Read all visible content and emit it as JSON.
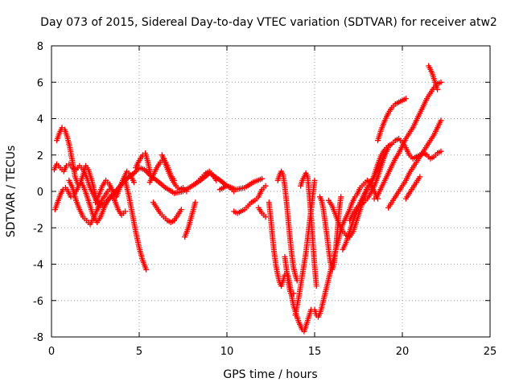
{
  "chart_data": {
    "type": "scatter",
    "title": "Day 073 of 2015, Sidereal Day-to-day VTEC variation (SDTVAR) for receiver atw2",
    "xlabel": "GPS time / hours",
    "ylabel": "SDTVAR / TECUs",
    "xlim": [
      0,
      25
    ],
    "ylim": [
      -8,
      8
    ],
    "xticks": [
      "0",
      "5",
      "10",
      "15",
      "20",
      "25"
    ],
    "yticks": [
      "-8",
      "-6",
      "-4",
      "-2",
      "0",
      "2",
      "4",
      "6",
      "8"
    ],
    "grid": true,
    "marker": "plus",
    "color": "#ff0000",
    "series": [
      {
        "x": [
          0.15,
          0.3,
          0.5,
          0.7,
          0.85,
          1.0,
          1.2,
          1.4,
          1.6,
          1.8,
          2.0,
          2.2,
          2.5,
          2.8,
          3.1,
          3.5,
          3.9,
          4.3,
          4.7,
          5.0,
          5.3,
          5.6,
          6.0,
          6.5,
          7.0,
          7.5,
          8.0,
          8.5,
          9.0,
          9.5,
          10.0,
          10.5,
          11.0,
          11.5,
          12.0
        ],
        "y": [
          1.2,
          1.5,
          1.3,
          1.1,
          1.4,
          1.5,
          1.3,
          1.2,
          1.4,
          1.2,
          0.8,
          0.2,
          -0.4,
          -0.8,
          -0.6,
          -0.2,
          0.3,
          0.7,
          1.0,
          1.3,
          1.2,
          0.9,
          0.6,
          0.2,
          -0.1,
          0.0,
          0.3,
          0.6,
          1.0,
          0.7,
          0.3,
          0.1,
          0.2,
          0.5,
          0.7
        ]
      },
      {
        "x": [
          0.2,
          0.35,
          0.5,
          0.65,
          0.8,
          0.95,
          1.1,
          1.25,
          1.4,
          1.55,
          1.7,
          1.85,
          2.0,
          2.2,
          2.4,
          2.6,
          2.8,
          3.0,
          3.2,
          3.4,
          3.6,
          3.8,
          4.0,
          4.2
        ],
        "y": [
          -1.0,
          -0.6,
          -0.2,
          0.1,
          0.2,
          0.0,
          -0.3,
          -0.2,
          0.0,
          0.3,
          0.5,
          0.2,
          -0.2,
          -0.8,
          -1.4,
          -1.7,
          -1.4,
          -0.9,
          -0.5,
          -0.2,
          -0.5,
          -1.0,
          -1.3,
          -1.1
        ]
      },
      {
        "x": [
          0.3,
          0.45,
          0.6,
          0.75,
          0.9,
          1.05,
          1.2,
          1.35,
          1.5,
          1.65,
          1.8,
          1.95,
          2.1,
          2.3,
          2.5,
          2.7
        ],
        "y": [
          2.8,
          3.2,
          3.5,
          3.4,
          3.0,
          2.4,
          1.6,
          0.8,
          0.4,
          0.5,
          0.9,
          1.4,
          1.2,
          0.6,
          -0.2,
          -0.9
        ]
      },
      {
        "x": [
          1.0,
          1.2,
          1.4,
          1.6,
          1.8,
          2.0,
          2.2,
          2.4,
          2.6,
          2.8,
          3.0,
          3.2,
          3.4
        ],
        "y": [
          0.6,
          0.2,
          -0.5,
          -1.0,
          -1.4,
          -1.6,
          -1.8,
          -1.5,
          -1.0,
          -0.6,
          -0.3,
          0.0,
          0.2
        ]
      },
      {
        "x": [
          2.5,
          2.7,
          2.9,
          3.1,
          3.3,
          3.5,
          3.7,
          3.9,
          4.1,
          4.3,
          4.5,
          4.7
        ],
        "y": [
          -0.6,
          -0.2,
          0.3,
          0.6,
          0.4,
          0.0,
          -0.3,
          0.2,
          0.7,
          1.1,
          0.9,
          0.5
        ]
      },
      {
        "x": [
          4.2,
          4.4,
          4.6,
          4.8,
          5.0,
          5.2,
          5.4
        ],
        "y": [
          0.6,
          -0.2,
          -1.2,
          -2.2,
          -3.1,
          -3.8,
          -4.3
        ]
      },
      {
        "x": [
          4.8,
          5.0,
          5.2,
          5.35,
          5.5,
          5.65
        ],
        "y": [
          1.3,
          1.7,
          2.0,
          2.1,
          1.6,
          0.9
        ]
      },
      {
        "x": [
          5.6,
          5.8,
          6.0,
          6.2,
          6.4,
          6.6,
          6.8,
          7.0
        ],
        "y": [
          0.5,
          0.9,
          1.3,
          1.6,
          1.8,
          1.4,
          0.9,
          0.6
        ]
      },
      {
        "x": [
          5.8,
          6.0,
          6.2,
          6.4,
          6.6,
          6.8,
          7.0,
          7.2,
          7.4
        ],
        "y": [
          -0.6,
          -0.9,
          -1.2,
          -1.4,
          -1.6,
          -1.7,
          -1.6,
          -1.3,
          -1.0
        ]
      },
      {
        "x": [
          6.3,
          6.5,
          6.7,
          6.9,
          7.1,
          7.3,
          7.5,
          7.7
        ],
        "y": [
          2.0,
          1.5,
          1.0,
          0.6,
          0.3,
          0.1,
          0.2,
          0.0
        ]
      },
      {
        "x": [
          7.6,
          7.8,
          8.0,
          8.2
        ],
        "y": [
          -2.5,
          -2.0,
          -1.3,
          -0.6
        ]
      },
      {
        "x": [
          8.2,
          8.4,
          8.6,
          8.8,
          9.0,
          9.2,
          9.4
        ],
        "y": [
          0.4,
          0.6,
          0.8,
          1.0,
          1.1,
          0.9,
          0.6
        ]
      },
      {
        "x": [
          9.6,
          9.8,
          10.0,
          10.2,
          10.4
        ],
        "y": [
          0.1,
          0.2,
          0.3,
          0.2,
          0.0
        ]
      },
      {
        "x": [
          10.4,
          10.6,
          10.8,
          11.0,
          11.2,
          11.4,
          11.6,
          11.8,
          12.0,
          12.2
        ],
        "y": [
          -1.1,
          -1.2,
          -1.1,
          -1.0,
          -0.8,
          -0.6,
          -0.5,
          -0.3,
          0.1,
          0.3
        ]
      },
      {
        "x": [
          11.8,
          12.0,
          12.2
        ],
        "y": [
          -0.9,
          -1.2,
          -1.4
        ]
      },
      {
        "x": [
          12.4,
          12.5,
          12.6,
          12.7,
          12.8,
          12.9,
          13.0,
          13.1,
          13.2,
          13.3,
          13.4,
          13.5,
          13.6,
          13.7,
          13.8,
          13.9,
          14.0,
          14.1,
          14.2,
          14.3,
          14.4,
          14.5,
          14.6,
          14.7,
          14.8
        ],
        "y": [
          -0.6,
          -1.5,
          -2.5,
          -3.4,
          -4.1,
          -4.6,
          -5.0,
          -5.2,
          -4.9,
          -4.6,
          -4.5,
          -4.7,
          -5.2,
          -5.8,
          -6.3,
          -6.6,
          -6.9,
          -7.2,
          -7.4,
          -7.6,
          -7.7,
          -7.4,
          -7.1,
          -6.8,
          -6.5
        ]
      },
      {
        "x": [
          12.9,
          13.0,
          13.1,
          13.2,
          13.3,
          13.4,
          13.5,
          13.6,
          13.7,
          13.8,
          13.9,
          14.0
        ],
        "y": [
          0.6,
          0.9,
          1.1,
          0.9,
          0.3,
          -0.6,
          -1.6,
          -2.6,
          -3.5,
          -4.2,
          -4.6,
          -4.9
        ]
      },
      {
        "x": [
          13.3,
          13.4,
          13.5,
          13.6,
          13.7,
          13.8
        ],
        "y": [
          -3.6,
          -4.3,
          -5.0,
          -5.5,
          -5.7,
          -5.6
        ]
      },
      {
        "x": [
          13.9,
          14.0,
          14.1,
          14.2,
          14.3,
          14.4,
          14.5,
          14.6,
          14.7,
          14.8,
          14.9,
          15.0
        ],
        "y": [
          -6.8,
          -6.3,
          -5.8,
          -5.2,
          -4.6,
          -4.0,
          -3.4,
          -2.6,
          -1.8,
          -1.0,
          -0.2,
          0.6
        ]
      },
      {
        "x": [
          14.2,
          14.3,
          14.4,
          14.5,
          14.6,
          14.7,
          14.8,
          14.9,
          15.0,
          15.1
        ],
        "y": [
          0.3,
          0.6,
          0.8,
          1.0,
          0.8,
          -0.2,
          -1.4,
          -2.8,
          -4.1,
          -5.2
        ]
      },
      {
        "x": [
          15.0,
          15.1,
          15.2,
          15.3,
          15.4,
          15.5,
          15.6,
          15.7,
          15.8,
          15.9,
          16.0,
          16.1,
          16.2,
          16.3,
          16.4,
          16.5,
          16.6,
          16.7,
          16.8,
          16.9,
          17.0,
          17.1,
          17.2,
          17.3,
          17.4,
          17.5,
          17.6,
          17.8,
          18.0,
          18.2,
          18.4
        ],
        "y": [
          -6.5,
          -6.8,
          -6.9,
          -6.7,
          -6.4,
          -6.0,
          -5.6,
          -5.2,
          -4.8,
          -4.4,
          -4.0,
          -3.6,
          -3.2,
          -2.9,
          -2.5,
          -2.1,
          -1.8,
          -1.6,
          -1.4,
          -1.2,
          -1.0,
          -0.7,
          -0.5,
          -0.3,
          -0.2,
          0.0,
          0.2,
          0.4,
          0.6,
          0.5,
          0.3
        ]
      },
      {
        "x": [
          15.3,
          15.4,
          15.5,
          15.6,
          15.7,
          15.8,
          15.9,
          16.0,
          16.1,
          16.2,
          16.3,
          16.4,
          16.5
        ],
        "y": [
          -0.3,
          -0.5,
          -1.0,
          -1.7,
          -2.4,
          -3.2,
          -3.9,
          -4.3,
          -4.0,
          -3.2,
          -2.2,
          -1.0,
          -0.3
        ]
      },
      {
        "x": [
          15.8,
          16.0,
          16.2,
          16.4,
          16.6,
          16.8,
          17.0,
          17.2,
          17.4,
          17.6,
          17.8,
          18.0,
          18.2,
          18.4,
          18.6
        ],
        "y": [
          -0.5,
          -0.8,
          -1.3,
          -1.8,
          -2.2,
          -2.4,
          -2.5,
          -2.2,
          -1.6,
          -1.0,
          -0.4,
          0.1,
          0.3,
          0.0,
          -0.4
        ]
      },
      {
        "x": [
          16.6,
          16.8,
          17.0,
          17.2,
          17.4,
          17.6,
          17.8,
          18.0,
          18.2,
          18.4,
          18.6,
          18.8,
          19.0
        ],
        "y": [
          -3.2,
          -2.8,
          -2.2,
          -1.6,
          -1.1,
          -0.6,
          -0.2,
          0.2,
          0.5,
          0.8,
          1.2,
          1.6,
          2.0
        ]
      },
      {
        "x": [
          17.0,
          17.2,
          17.4,
          17.6,
          17.8,
          18.0,
          18.2,
          18.4,
          18.6,
          18.8,
          19.0,
          19.2
        ],
        "y": [
          -1.6,
          -1.2,
          -0.9,
          -0.7,
          -0.6,
          -0.4,
          -0.1,
          0.3,
          0.8,
          1.4,
          2.0,
          2.4
        ]
      },
      {
        "x": [
          18.2,
          18.4,
          18.6,
          18.8,
          19.0,
          19.2,
          19.4,
          19.6,
          19.8,
          20.0,
          20.2,
          20.4,
          20.6,
          20.8,
          21.0,
          21.2,
          21.4,
          21.6,
          21.8,
          22.0,
          22.2
        ],
        "y": [
          0.4,
          0.9,
          1.5,
          2.0,
          2.3,
          2.5,
          2.6,
          2.8,
          2.9,
          2.7,
          2.4,
          2.0,
          1.8,
          1.9,
          2.0,
          2.1,
          2.0,
          1.8,
          1.9,
          2.1,
          2.2
        ]
      },
      {
        "x": [
          18.6,
          18.8,
          19.0,
          19.2,
          19.4,
          19.6,
          19.8,
          20.0,
          20.2
        ],
        "y": [
          2.8,
          3.4,
          3.9,
          4.3,
          4.6,
          4.8,
          4.9,
          5.0,
          5.1
        ]
      },
      {
        "x": [
          18.4,
          18.6,
          18.8,
          19.0,
          19.2,
          19.4,
          19.6,
          19.8,
          20.0,
          20.2,
          20.4,
          20.6,
          20.8,
          21.0,
          21.2,
          21.4,
          21.6,
          21.8,
          22.0,
          22.2
        ],
        "y": [
          -0.4,
          -0.2,
          0.2,
          0.6,
          1.0,
          1.4,
          1.8,
          2.1,
          2.5,
          2.9,
          3.2,
          3.5,
          3.9,
          4.3,
          4.7,
          5.1,
          5.4,
          5.7,
          5.9,
          6.0
        ]
      },
      {
        "x": [
          19.2,
          19.4,
          19.6,
          19.8,
          20.0,
          20.2,
          20.4,
          20.6,
          20.8,
          21.0,
          21.2,
          21.4,
          21.6,
          21.8,
          22.0,
          22.2
        ],
        "y": [
          -0.9,
          -0.6,
          -0.3,
          0.0,
          0.3,
          0.6,
          1.0,
          1.3,
          1.6,
          1.9,
          2.2,
          2.5,
          2.8,
          3.1,
          3.5,
          3.9
        ]
      },
      {
        "x": [
          20.2,
          20.4,
          20.6,
          20.8,
          21.0
        ],
        "y": [
          -0.4,
          -0.1,
          0.2,
          0.5,
          0.8
        ]
      },
      {
        "x": [
          21.5,
          21.6,
          21.7,
          21.8,
          21.9,
          22.0
        ],
        "y": [
          6.9,
          6.7,
          6.5,
          6.2,
          5.9,
          5.6
        ]
      }
    ]
  }
}
